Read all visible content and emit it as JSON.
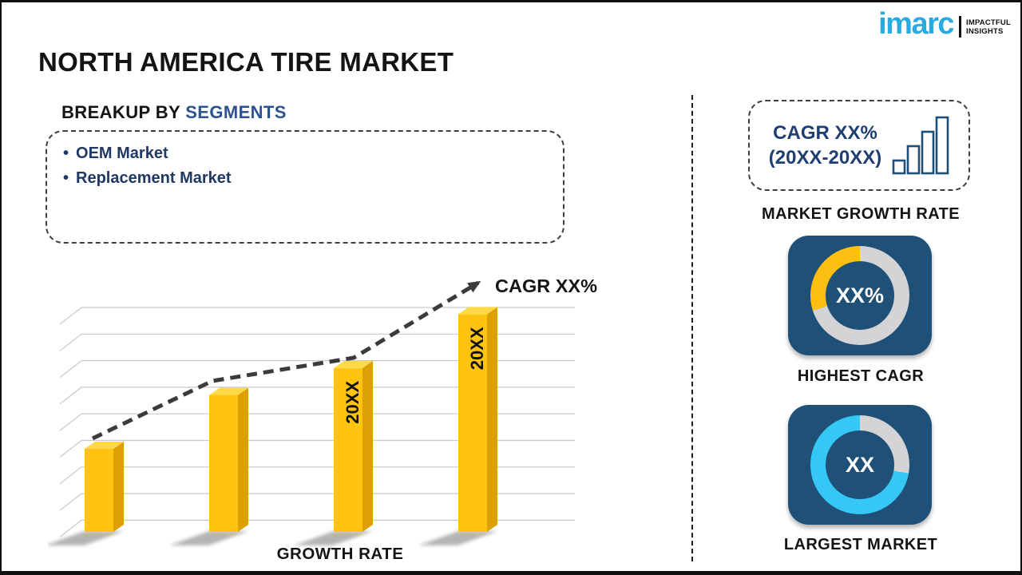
{
  "page": {
    "background": "#ffffff",
    "frame_color": "#0f0f0f"
  },
  "logo": {
    "brand": "imarc",
    "tagline_line1": "IMPACTFUL",
    "tagline_line2": "INSIGHTS",
    "brand_color": "#29ABE2"
  },
  "title": "NORTH AMERICA TIRE MARKET",
  "segments_section": {
    "heading_prefix": "BREAKUP BY ",
    "heading_highlight": "SEGMENTS",
    "bullet": "•",
    "items": [
      "OEM Market",
      "Replacement Market"
    ]
  },
  "chart_data": {
    "type": "bar",
    "title": "",
    "xlabel": "GROWTH RATE",
    "ylabel": "",
    "categories": [
      "",
      "",
      "20XX",
      "20XX"
    ],
    "values": [
      37,
      61,
      73,
      97
    ],
    "ylim": [
      0,
      100
    ],
    "grid": true,
    "legend": "none",
    "bar_color": "#FFC310",
    "bar_side_color": "#DDA004",
    "bar_top_color": "#FFD948",
    "trend_label": "CAGR XX%",
    "trend_style": "dashed-rising-arrow"
  },
  "right_panel": {
    "growth_box": {
      "line1": "CAGR XX%",
      "line2": "(20XX-20XX)",
      "icon": "bar-chart-icon",
      "caption": "MARKET GROWTH RATE"
    },
    "highest_cagr": {
      "value": "XX%",
      "caption": "HIGHEST CAGR",
      "accent_color": "#FDC010",
      "track_color": "#D4D4D6",
      "accent_from_deg": 252,
      "accent_to_deg": 360,
      "tile_color": "#1F5078"
    },
    "largest_market": {
      "value": "XX",
      "caption": "LARGEST MARKET",
      "accent_color": "#35C7F5",
      "track_color": "#D4D4D6",
      "accent_from_deg": 100,
      "accent_to_deg": 360,
      "tile_color": "#1F5078"
    }
  }
}
